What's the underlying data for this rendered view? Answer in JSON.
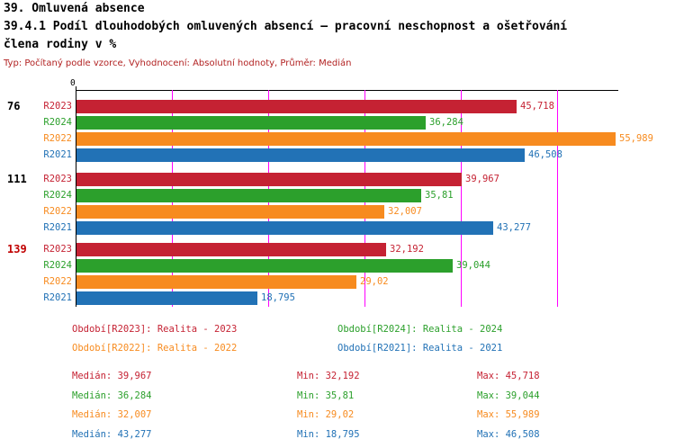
{
  "page": {
    "title_line1": "39. Omluvená absence",
    "title_line2": "39.4.1 Podíl dlouhodobých omluvených absencí – pracovní neschopnost a ošetřování",
    "title_line3": "člena rodiny v %",
    "meta": "Typ: Počítaný podle vzorce, Vyhodnocení: Absolutní hodnoty, Průměr: Medián"
  },
  "chart_data": {
    "type": "bar",
    "orientation": "horizontal",
    "title": "39. Omluvená absence",
    "subtitle": "39.4.1 Podíl dlouhodobých omluvených absencí – pracovní neschopnost a ošetřování člena rodiny v %",
    "unit": "%",
    "x_axis": {
      "min": 0,
      "origin_label": "0",
      "gridlines": [
        10,
        20,
        30,
        40,
        50
      ],
      "gridline_color": "#ff00ff"
    },
    "series_order": [
      "R2023",
      "R2024",
      "R2022",
      "R2021"
    ],
    "colors": {
      "R2023": "#c52233",
      "R2024": "#2ca02c",
      "R2022": "#f78b1f",
      "R2021": "#2272b6"
    },
    "groups": [
      {
        "label": "76",
        "label_color": "#000000",
        "bars": [
          {
            "series": "R2023",
            "value": 45.718,
            "display": "45,718"
          },
          {
            "series": "R2024",
            "value": 36.284,
            "display": "36,284"
          },
          {
            "series": "R2022",
            "value": 55.989,
            "display": "55,989"
          },
          {
            "series": "R2021",
            "value": 46.508,
            "display": "46,508"
          }
        ]
      },
      {
        "label": "111",
        "label_color": "#000000",
        "bars": [
          {
            "series": "R2023",
            "value": 39.967,
            "display": "39,967"
          },
          {
            "series": "R2024",
            "value": 35.81,
            "display": "35,81"
          },
          {
            "series": "R2022",
            "value": 32.007,
            "display": "32,007"
          },
          {
            "series": "R2021",
            "value": 43.277,
            "display": "43,277"
          }
        ]
      },
      {
        "label": "139",
        "label_color": "#c00000",
        "bars": [
          {
            "series": "R2023",
            "value": 32.192,
            "display": "32,192"
          },
          {
            "series": "R2024",
            "value": 39.044,
            "display": "39,044"
          },
          {
            "series": "R2022",
            "value": 29.02,
            "display": "29,02"
          },
          {
            "series": "R2021",
            "value": 18.795,
            "display": "18,795"
          }
        ]
      }
    ],
    "legend": [
      {
        "label": "Období[R2023]: Realita - 2023",
        "color": "#c52233",
        "row": 0,
        "col": 0
      },
      {
        "label": "Období[R2024]: Realita - 2024",
        "color": "#2ca02c",
        "row": 0,
        "col": 1
      },
      {
        "label": "Období[R2022]: Realita - 2022",
        "color": "#f78b1f",
        "row": 1,
        "col": 0
      },
      {
        "label": "Období[R2021]: Realita - 2021",
        "color": "#2272b6",
        "row": 1,
        "col": 1
      }
    ],
    "stats": [
      {
        "series": "R2023",
        "color": "#c52233",
        "median": "Medián: 39,967",
        "min": "Min: 32,192",
        "max": "Max: 45,718"
      },
      {
        "series": "R2024",
        "color": "#2ca02c",
        "median": "Medián: 36,284",
        "min": "Min: 35,81",
        "max": "Max: 39,044"
      },
      {
        "series": "R2022",
        "color": "#f78b1f",
        "median": "Medián: 32,007",
        "min": "Min: 29,02",
        "max": "Max: 55,989"
      },
      {
        "series": "R2021",
        "color": "#2272b6",
        "median": "Medián: 43,277",
        "min": "Min: 18,795",
        "max": "Max: 46,508"
      }
    ]
  }
}
